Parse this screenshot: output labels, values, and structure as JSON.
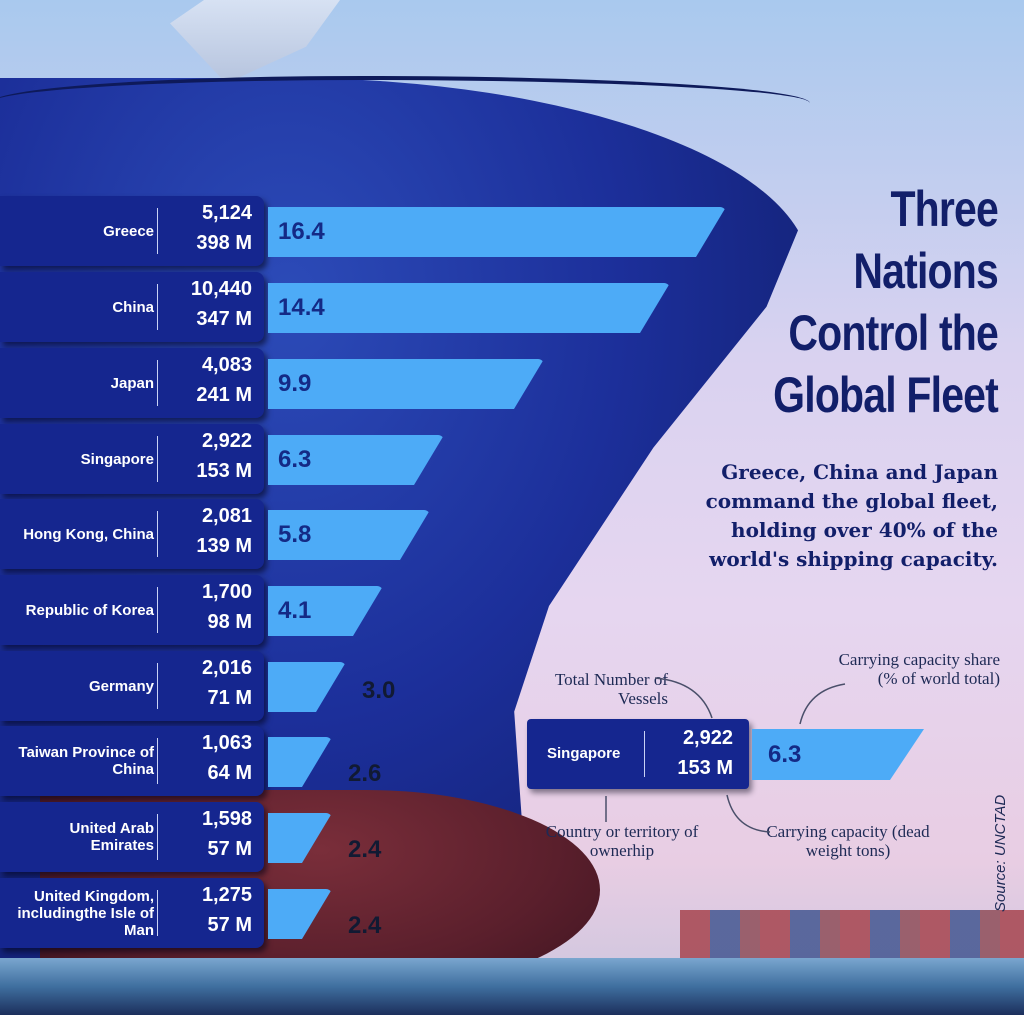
{
  "title": "Three Nations Control the Global Fleet",
  "title_lines": [
    "Three",
    "Nations",
    "Control the",
    "Global Fleet"
  ],
  "subtitle": "Greece, China and Japan command the global fleet, holding over 40% of the world's shipping capacity.",
  "source": "Source: UNCTAD",
  "colors": {
    "panel": "#15268f",
    "bar": "#4dabf7",
    "bar_text": "#142a86",
    "title": "#121f6a"
  },
  "rows": [
    {
      "country": "Greece",
      "vessels": "5,124",
      "dwt": "398 M",
      "share": "16.4"
    },
    {
      "country": "China",
      "vessels": "10,440",
      "dwt": "347 M",
      "share": "14.4"
    },
    {
      "country": "Japan",
      "vessels": "4,083",
      "dwt": "241 M",
      "share": "9.9"
    },
    {
      "country": "Singapore",
      "vessels": "2,922",
      "dwt": "153 M",
      "share": "6.3"
    },
    {
      "country": "Hong Kong, China",
      "vessels": "2,081",
      "dwt": "139 M",
      "share": "5.8"
    },
    {
      "country": "Republic of Korea",
      "vessels": "1,700",
      "dwt": "98 M",
      "share": "4.1"
    },
    {
      "country": "Germany",
      "vessels": "2,016",
      "dwt": "71 M",
      "share": "3.0"
    },
    {
      "country": "Taiwan Province of China",
      "vessels": "1,063",
      "dwt": "64 M",
      "share": "2.6"
    },
    {
      "country": "United Arab Emirates",
      "vessels": "1,598",
      "dwt": "57 M",
      "share": "2.4"
    },
    {
      "country": "United Kingdom, includingthe Isle of Man",
      "vessels": "1,275",
      "dwt": "57 M",
      "share": "2.4"
    }
  ],
  "legend": {
    "country": "Singapore",
    "vessels": "2,922",
    "dwt": "153 M",
    "share": "6.3",
    "label_vessels": "Total Number of Vessels",
    "label_share": "Carrying capacity share (% of world total)",
    "label_country": "Country or territory of ownerhip",
    "label_dwt": "Carrying capacity (dead weight tons)"
  },
  "chart_data": {
    "type": "bar",
    "orientation": "horizontal",
    "title": "Three Nations Control the Global Fleet",
    "subtitle": "Greece, China and Japan command the global fleet, holding over 40% of the world's shipping capacity.",
    "xlabel": "Carrying capacity share (% of world total)",
    "ylabel": "Country or territory of ownerhip",
    "categories": [
      "Greece",
      "China",
      "Japan",
      "Singapore",
      "Hong Kong, China",
      "Republic of Korea",
      "Germany",
      "Taiwan Province of China",
      "United Arab Emirates",
      "United Kingdom, includingthe Isle of Man"
    ],
    "series": [
      {
        "name": "Carrying capacity share (% of world total)",
        "values": [
          16.4,
          14.4,
          9.9,
          6.3,
          5.8,
          4.1,
          3.0,
          2.6,
          2.4,
          2.4
        ]
      },
      {
        "name": "Total Number of Vessels",
        "values": [
          5124,
          10440,
          4083,
          2922,
          2081,
          1700,
          2016,
          1063,
          1598,
          1275
        ]
      },
      {
        "name": "Carrying capacity (dead weight tons, millions)",
        "values": [
          398,
          347,
          241,
          153,
          139,
          98,
          71,
          64,
          57,
          57
        ]
      }
    ],
    "source": "UNCTAD",
    "grid": false,
    "legend_position": "right (annotated example row: Singapore)"
  }
}
